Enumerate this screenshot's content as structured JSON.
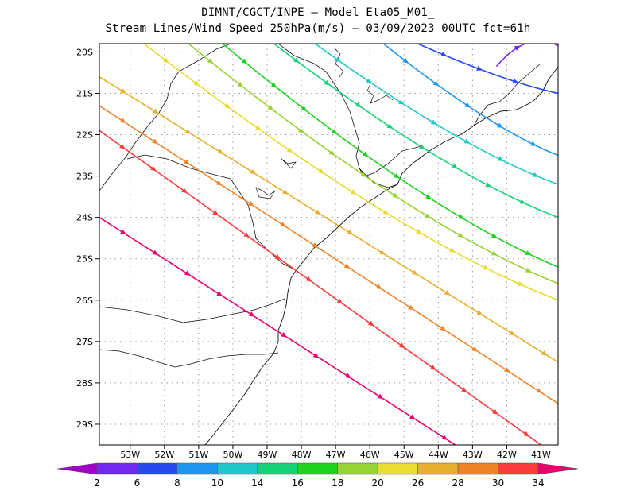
{
  "header": {
    "line1": "DIMNT/CGCT/INPE –  Model Eta05_M01_",
    "line2": "Stream Lines/Wind Speed 250hPa(m/s) –  03/09/2023 00UTC fct=61h"
  },
  "map": {
    "lon_range": [
      -53.9,
      -40.5
    ],
    "lat_range": [
      -29.5,
      -19.8
    ],
    "lat_ticks": [
      {
        "value": -20,
        "label": "20S"
      },
      {
        "value": -21,
        "label": "21S"
      },
      {
        "value": -22,
        "label": "22S"
      },
      {
        "value": -23,
        "label": "23S"
      },
      {
        "value": -24,
        "label": "24S"
      },
      {
        "value": -25,
        "label": "25S"
      },
      {
        "value": -26,
        "label": "26S"
      },
      {
        "value": -27,
        "label": "27S"
      },
      {
        "value": -28,
        "label": "28S"
      },
      {
        "value": -29,
        "label": "29S"
      }
    ],
    "lon_ticks": [
      {
        "value": -53,
        "label": "53W"
      },
      {
        "value": -52,
        "label": "52W"
      },
      {
        "value": -51,
        "label": "51W"
      },
      {
        "value": -50,
        "label": "50W"
      },
      {
        "value": -49,
        "label": "49W"
      },
      {
        "value": -48,
        "label": "48W"
      },
      {
        "value": -47,
        "label": "47W"
      },
      {
        "value": -46,
        "label": "46W"
      },
      {
        "value": -45,
        "label": "45W"
      },
      {
        "value": -44,
        "label": "44W"
      },
      {
        "value": -43,
        "label": "43W"
      },
      {
        "value": -42,
        "label": "42W"
      },
      {
        "value": -41,
        "label": "41W"
      }
    ]
  },
  "colorbar": {
    "labels": [
      "2",
      "6",
      "8",
      "10",
      "14",
      "16",
      "18",
      "20",
      "26",
      "28",
      "30",
      "34"
    ],
    "colors": [
      "#a000c8",
      "#6e28f0",
      "#2848f0",
      "#1e96f0",
      "#1ec8c8",
      "#14d278",
      "#1ed21e",
      "#96d232",
      "#e6dc32",
      "#e6af2d",
      "#f08228",
      "#fa3c3c",
      "#e6006e"
    ]
  },
  "streamlines": [
    {
      "speed": 2,
      "lat0": -20.35,
      "lon0": -42.3,
      "lat1": -19.85,
      "lon1": -40.5,
      "curve": "wrap-north"
    },
    {
      "speed": 6,
      "lat0": -19.8,
      "lon0": -44.6,
      "lat1": -21.0,
      "lon1": -40.5,
      "curve": "bend-east"
    },
    {
      "speed": 8,
      "lat0": -19.8,
      "lon0": -45.6,
      "lat1": -22.5,
      "lon1": -40.5,
      "curve": "bend-east"
    },
    {
      "speed": 10,
      "lat0": -19.8,
      "lon0": -47.6,
      "lat1": -23.2,
      "lon1": -40.5,
      "curve": "bend-east"
    },
    {
      "speed": 14,
      "lat0": -19.8,
      "lon0": -48.8,
      "lat1": -24.0,
      "lon1": -40.5,
      "curve": "bend-east"
    },
    {
      "speed": 16,
      "lat0": -19.8,
      "lon0": -50.3,
      "lat1": -25.2,
      "lon1": -40.5,
      "curve": "bend-east"
    },
    {
      "speed": 18,
      "lat0": -19.8,
      "lon0": -51.3,
      "lat1": -25.6,
      "lon1": -40.5,
      "curve": "bend-east"
    },
    {
      "speed": 20,
      "lat0": -19.8,
      "lon0": -52.6,
      "lat1": -26.0,
      "lon1": -40.5,
      "curve": "bend-east"
    },
    {
      "speed": 26,
      "lat0": -20.6,
      "lon0": -53.9,
      "lat1": -27.5,
      "lon1": -40.5,
      "curve": "straight"
    },
    {
      "speed": 28,
      "lat0": -21.3,
      "lon0": -53.9,
      "lat1": -28.5,
      "lon1": -40.5,
      "curve": "straight"
    },
    {
      "speed": 30,
      "lat0": -21.9,
      "lon0": -53.9,
      "lat1": -29.5,
      "lon1": -41.0,
      "curve": "straight"
    },
    {
      "speed": 34,
      "lat0": -24.0,
      "lon0": -53.9,
      "lat1": -29.5,
      "lon1": -43.5,
      "curve": "straight"
    }
  ]
}
